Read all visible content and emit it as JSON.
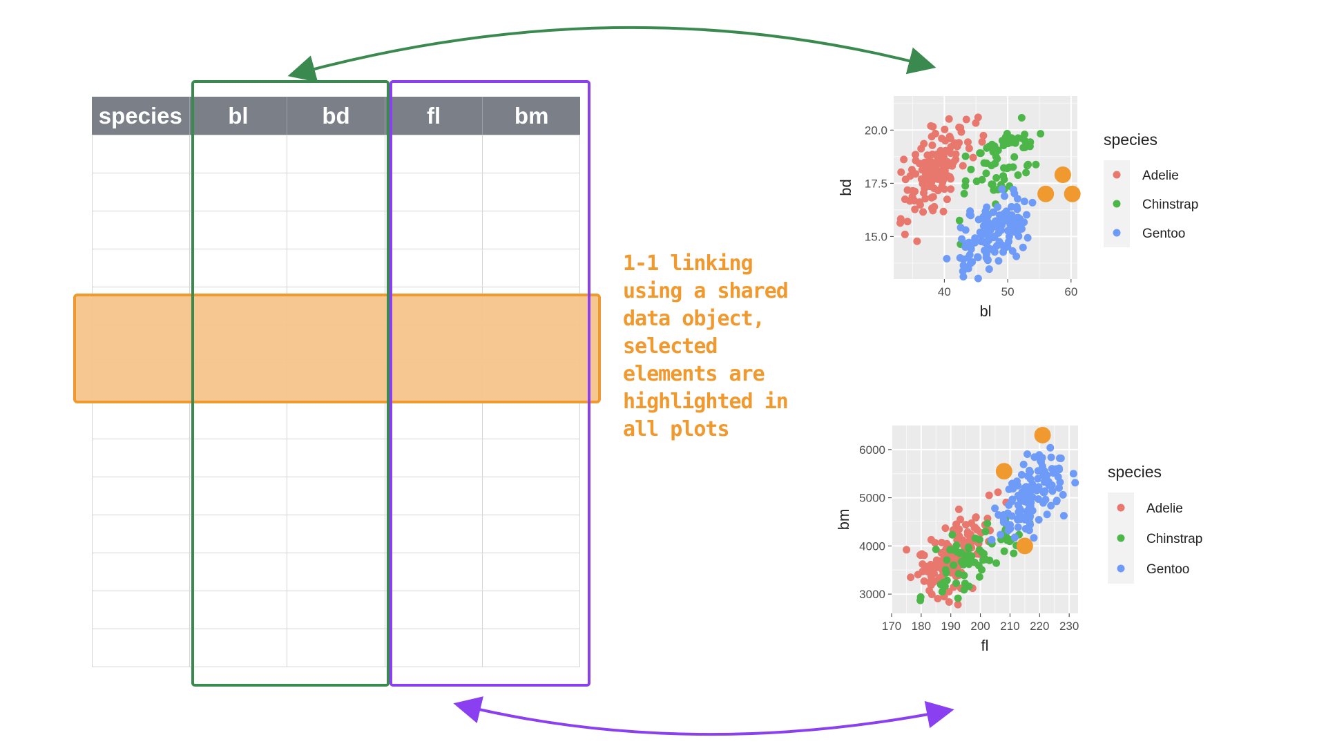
{
  "table": {
    "columns": [
      "species",
      "bl",
      "bd",
      "fl",
      "bm"
    ],
    "row_count": 14
  },
  "note": {
    "text": "1-1 linking\nusing a shared\ndata object,\nselected\nelements are\nhighlighted in\nall plots",
    "color": "#f0992e"
  },
  "colors": {
    "green_group": "#3a8a50",
    "purple_group": "#8a3ff0",
    "highlight": "#f0992e",
    "highlight_fill": "#f5c48b",
    "header_bg": "#7b8088",
    "panel_bg": "#ebebeb",
    "species": {
      "Adelie": "#e8776d",
      "Chinstrap": "#4cb748",
      "Gentoo": "#6d9bf7"
    }
  },
  "chart_data": [
    {
      "type": "scatter",
      "xlabel": "bl",
      "ylabel": "bd",
      "xticks": [
        "40",
        "50",
        "60"
      ],
      "yticks": [
        "15.0",
        "17.5",
        "20.0"
      ],
      "xlim": [
        32,
        61
      ],
      "ylim": [
        13,
        21.6
      ],
      "legend_title": "species",
      "legend": [
        "Adelie",
        "Chinstrap",
        "Gentoo"
      ],
      "legend_placement": "right",
      "series": [
        {
          "name": "Adelie",
          "center": [
            38.8,
            18.3
          ],
          "spread": [
            2.6,
            1.2
          ],
          "n": 150
        },
        {
          "name": "Chinstrap",
          "center": [
            48.8,
            18.4
          ],
          "spread": [
            3.3,
            1.1
          ],
          "n": 68
        },
        {
          "name": "Gentoo",
          "center": [
            47.5,
            15.0
          ],
          "spread": [
            3.0,
            1.0
          ],
          "n": 124
        }
      ],
      "highlighted": [
        [
          56.0,
          17.0
        ],
        [
          58.7,
          17.9
        ],
        [
          60.2,
          17.0
        ]
      ]
    },
    {
      "type": "scatter",
      "xlabel": "fl",
      "ylabel": "bm",
      "xticks": [
        "170",
        "180",
        "190",
        "200",
        "210",
        "220",
        "230"
      ],
      "yticks": [
        "3000",
        "4000",
        "5000",
        "6000"
      ],
      "xlim": [
        170,
        233
      ],
      "ylim": [
        2600,
        6500
      ],
      "legend_title": "species",
      "legend": [
        "Adelie",
        "Chinstrap",
        "Gentoo"
      ],
      "legend_placement": "right",
      "series": [
        {
          "name": "Adelie",
          "center": [
            190,
            3700
          ],
          "spread": [
            6.5,
            460
          ],
          "n": 150
        },
        {
          "name": "Chinstrap",
          "center": [
            196,
            3730
          ],
          "spread": [
            7,
            380
          ],
          "n": 68
        },
        {
          "name": "Gentoo",
          "center": [
            217,
            5080
          ],
          "spread": [
            6.5,
            500
          ],
          "n": 124
        }
      ],
      "highlighted": [
        [
          208,
          5550
        ],
        [
          221,
          6300
        ],
        [
          215,
          4000
        ]
      ]
    }
  ]
}
